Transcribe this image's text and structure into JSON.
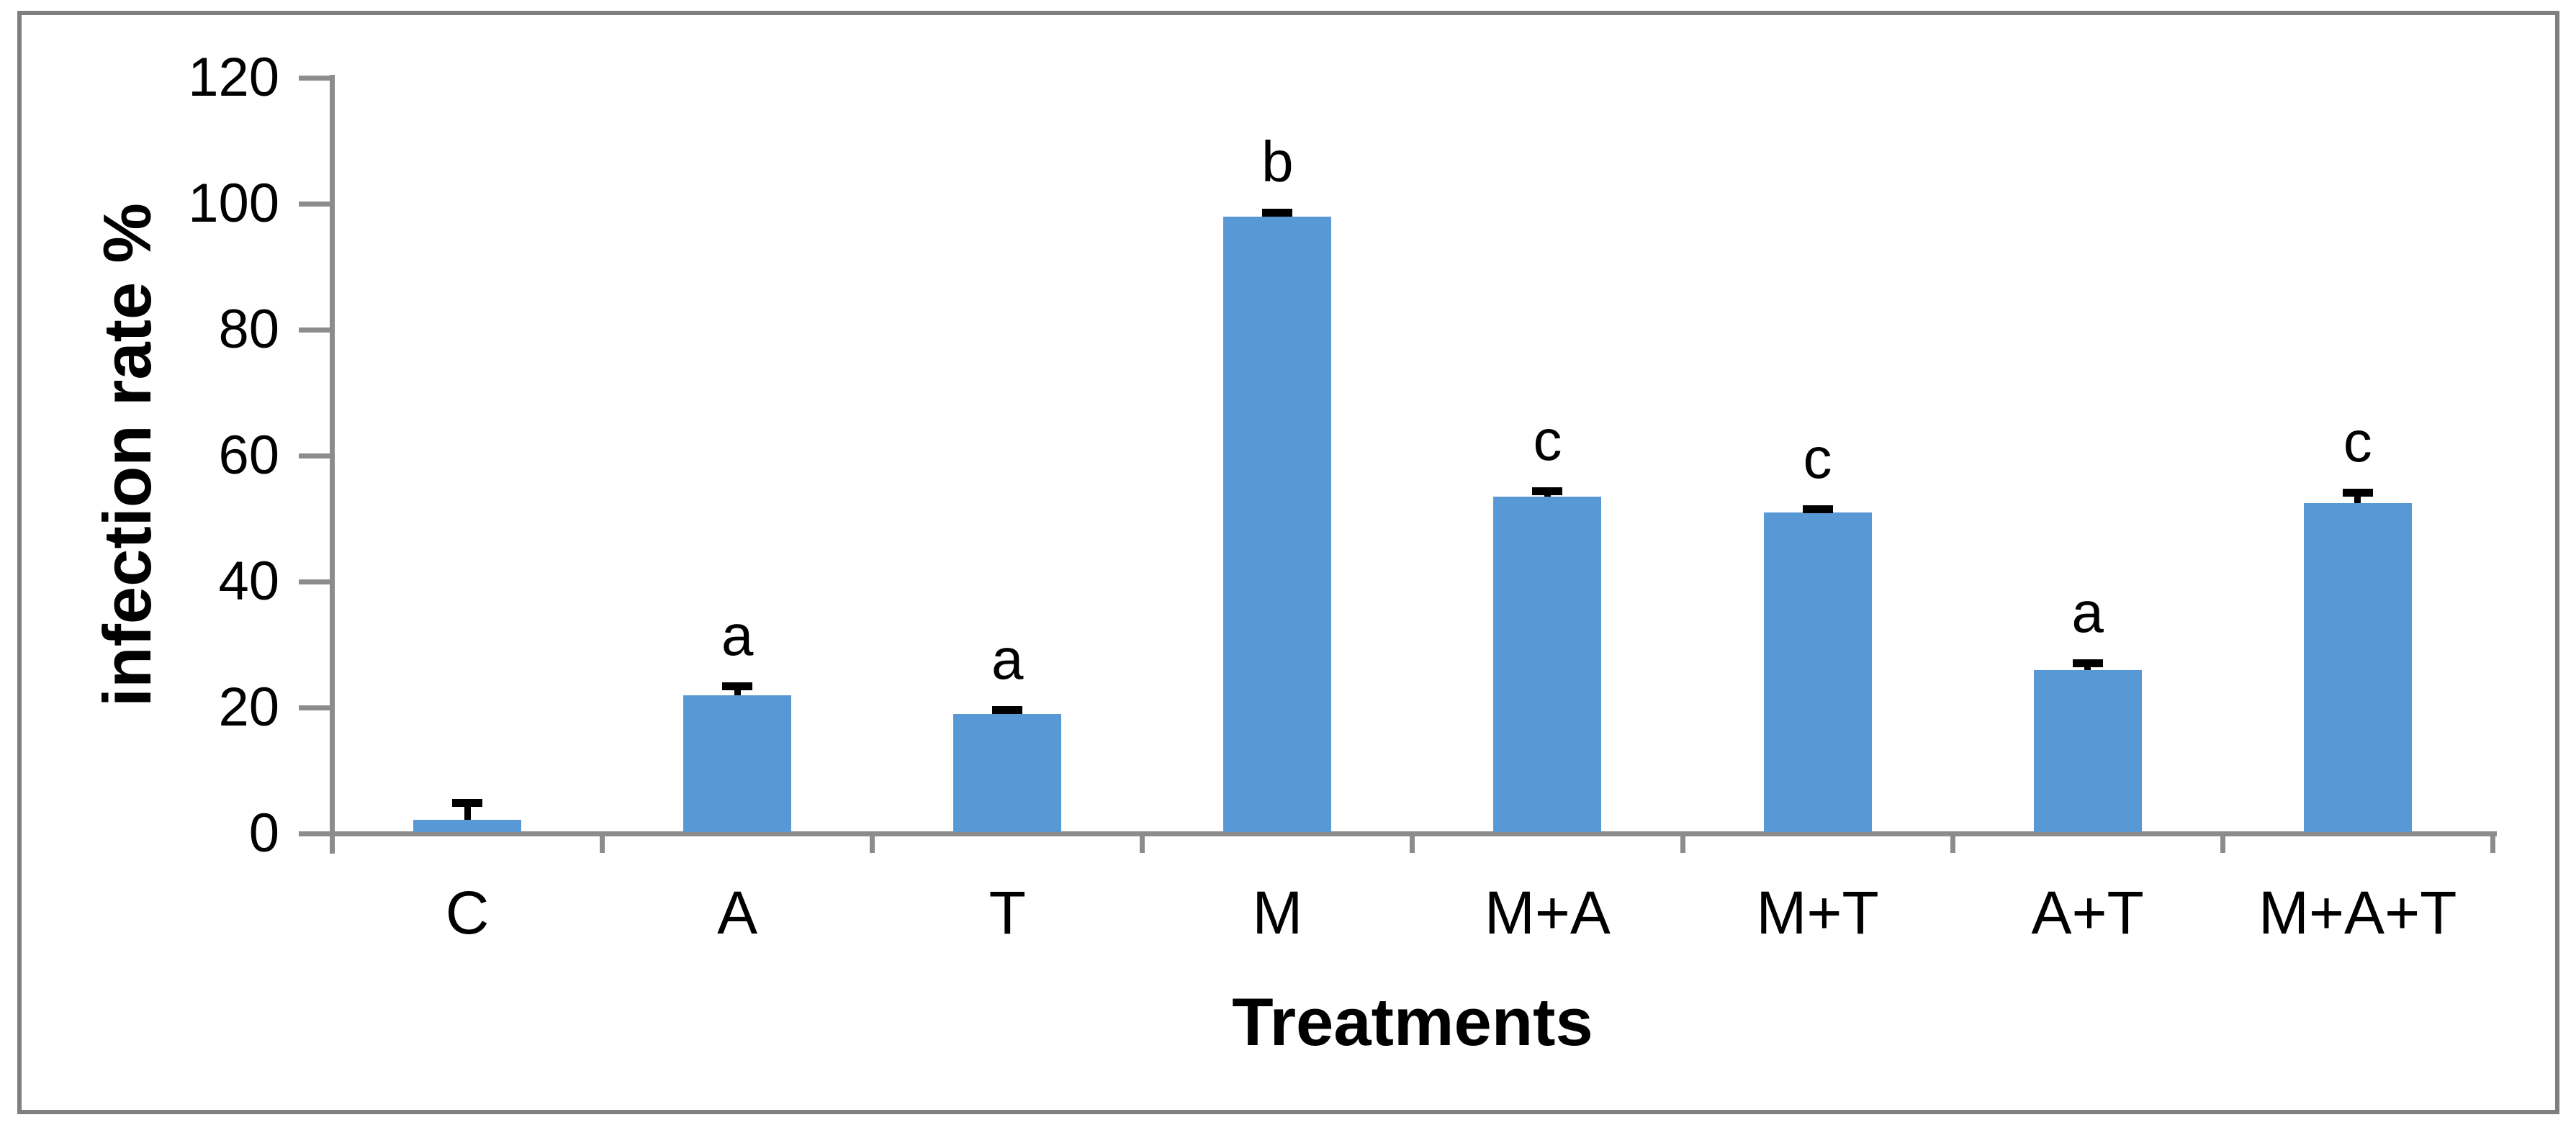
{
  "chart_data": {
    "type": "bar",
    "title": "",
    "xlabel": "Treatments",
    "ylabel": "infection rate %",
    "categories": [
      "C",
      "A",
      "T",
      "M",
      "M+A",
      "M+T",
      "A+T",
      "M+A+T"
    ],
    "values": [
      2.2,
      22,
      19,
      98,
      53.5,
      51,
      26,
      52.5
    ],
    "error_plus": [
      3.3,
      2.0,
      1.2,
      1.2,
      1.5,
      1.1,
      1.7,
      2.3
    ],
    "sig_letters": [
      "",
      "a",
      "a",
      "b",
      "c",
      "c",
      "a",
      "c"
    ],
    "yticks": [
      0,
      20,
      40,
      60,
      80,
      100,
      120
    ],
    "ylim": [
      0,
      120
    ],
    "grid": false,
    "legend": null,
    "colors": {
      "bar": "#5899D5",
      "axis": "#8C8C8C",
      "border": "#7F7F7F",
      "text": "#000000"
    }
  }
}
